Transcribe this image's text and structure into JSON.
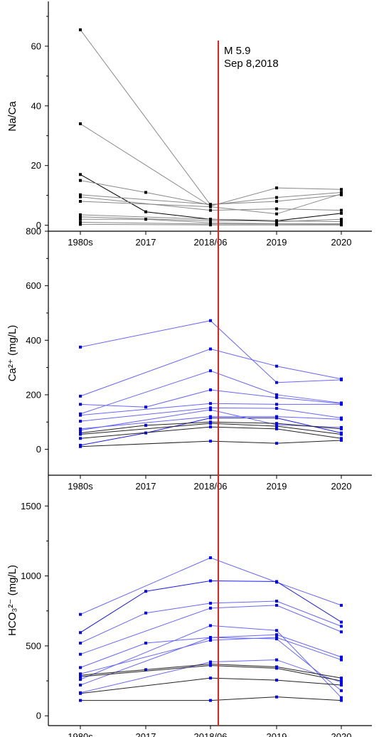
{
  "categories": [
    "1980s",
    "2017",
    "2018/06",
    "2019",
    "2020"
  ],
  "event": {
    "line1": "M 5.9",
    "line2": "Sep 8,2018",
    "at_category": "2018/06",
    "color": "#e8201a"
  },
  "chart_data": [
    {
      "type": "line",
      "ylabel": "Na/Ca",
      "ylim": [
        -2,
        75
      ],
      "yticks": [
        0,
        20,
        40,
        60
      ],
      "color": "#000000",
      "series": [
        {
          "values": [
            65.5,
            null,
            6.8,
            null,
            null
          ],
          "color": "#888888"
        },
        {
          "values": [
            34,
            null,
            6.4,
            12.5,
            12
          ],
          "color": "#888888"
        },
        {
          "values": [
            17,
            4.5,
            2,
            1.5,
            4
          ],
          "color": "#000000"
        },
        {
          "values": [
            15,
            11,
            6.8,
            9.3,
            11
          ],
          "color": "#888888"
        },
        {
          "values": [
            10.2,
            null,
            7,
            8,
            10.2
          ],
          "color": "#888888"
        },
        {
          "values": [
            9.5,
            null,
            5,
            5.5,
            5
          ],
          "color": "#888888"
        },
        {
          "values": [
            8,
            null,
            6.2,
            3.8,
            10.5
          ],
          "color": "#888888"
        },
        {
          "values": [
            3.5,
            null,
            2,
            1.2,
            2
          ],
          "color": "#888888"
        },
        {
          "values": [
            2.8,
            null,
            1.5,
            1.5,
            1.2
          ],
          "color": "#888888"
        },
        {
          "values": [
            2,
            2,
            0.8,
            0.5,
            0.5
          ],
          "color": "#888888"
        },
        {
          "values": [
            1,
            null,
            0.4,
            0.4,
            0.3
          ],
          "color": "#888888"
        },
        {
          "values": [
            0.3,
            null,
            0.1,
            0.1,
            0.1
          ],
          "color": "#888888"
        }
      ]
    },
    {
      "type": "line",
      "ylabel": "Ca²⁺ (mg/L)",
      "ylim": [
        -95,
        800
      ],
      "yticks": [
        0,
        200,
        400,
        600,
        800
      ],
      "color": "#0000ff",
      "series": [
        {
          "values": [
            375,
            null,
            472,
            245,
            255
          ],
          "color": "#6666ff"
        },
        {
          "values": [
            195,
            null,
            368,
            305,
            258
          ],
          "color": "#6666ff"
        },
        {
          "values": [
            130,
            null,
            288,
            200,
            170
          ],
          "color": "#6666ff"
        },
        {
          "values": [
            165,
            155,
            218,
            190,
            168
          ],
          "color": "#6666ff"
        },
        {
          "values": [
            125,
            null,
            168,
            165,
            165
          ],
          "color": "#6666ff"
        },
        {
          "values": [
            103,
            null,
            152,
            150,
            115
          ],
          "color": "#6666ff"
        },
        {
          "values": [
            15,
            60,
            115,
            115,
            60
          ],
          "color": "#1a1aee"
        },
        {
          "values": [
            75,
            null,
            120,
            120,
            110
          ],
          "color": "#6666ff"
        },
        {
          "values": [
            70,
            null,
            145,
            90,
            80
          ],
          "color": "#6666ff"
        },
        {
          "values": [
            60,
            88,
            100,
            95,
            75
          ],
          "color": "#222222"
        },
        {
          "values": [
            55,
            null,
            95,
            85,
            55
          ],
          "color": "#222222"
        },
        {
          "values": [
            40,
            null,
            82,
            75,
            40
          ],
          "color": "#222222"
        },
        {
          "values": [
            10,
            null,
            30,
            22,
            33
          ],
          "color": "#222222"
        }
      ]
    },
    {
      "type": "line",
      "ylabel": "HCO₃²⁻ (mg/L)",
      "ylim": [
        -70,
        1720
      ],
      "yticks": [
        0,
        500,
        1000,
        1500
      ],
      "color": "#0000ff",
      "series": [
        {
          "values": [
            725,
            null,
            1130,
            955,
            790
          ],
          "color": "#6666ff"
        },
        {
          "values": [
            595,
            890,
            965,
            960,
            670
          ],
          "color": "#1a1aee"
        },
        {
          "values": [
            520,
            735,
            805,
            820,
            640
          ],
          "color": "#6666ff"
        },
        {
          "values": [
            440,
            null,
            770,
            790,
            600
          ],
          "color": "#6666ff"
        },
        {
          "values": [
            345,
            520,
            560,
            580,
            420
          ],
          "color": "#6666ff"
        },
        {
          "values": [
            300,
            null,
            540,
            560,
            400
          ],
          "color": "#6666ff"
        },
        {
          "values": [
            260,
            null,
            645,
            610,
            130
          ],
          "color": "#6666ff"
        },
        {
          "values": [
            220,
            null,
            560,
            550,
            180
          ],
          "color": "#6666ff"
        },
        {
          "values": [
            165,
            null,
            385,
            400,
            240
          ],
          "color": "#6666ff"
        },
        {
          "values": [
            290,
            330,
            370,
            350,
            270
          ],
          "color": "#222222"
        },
        {
          "values": [
            280,
            null,
            360,
            340,
            250
          ],
          "color": "#222222"
        },
        {
          "values": [
            160,
            null,
            270,
            255,
            220
          ],
          "color": "#222222"
        },
        {
          "values": [
            110,
            null,
            110,
            135,
            110
          ],
          "color": "#222222"
        }
      ]
    }
  ]
}
